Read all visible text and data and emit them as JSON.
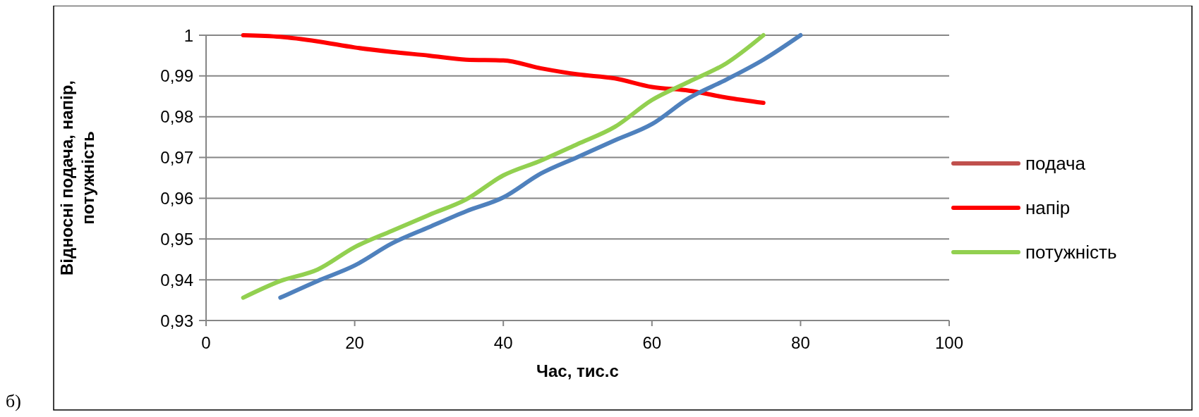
{
  "chart_data": {
    "type": "line",
    "xlabel": "Час, тис.с",
    "ylabel": "Відносні подача, напір, потужність",
    "annotations": [
      "б)"
    ],
    "xlim": [
      0,
      100
    ],
    "xticks": [
      0,
      20,
      40,
      60,
      80,
      100
    ],
    "ylim": [
      0.93,
      1
    ],
    "yticks": [
      {
        "value": 0.93,
        "label": "0,93"
      },
      {
        "value": 0.94,
        "label": "0,94"
      },
      {
        "value": 0.95,
        "label": "0,95"
      },
      {
        "value": 0.96,
        "label": "0,96"
      },
      {
        "value": 0.97,
        "label": "0,97"
      },
      {
        "value": 0.98,
        "label": "0,98"
      },
      {
        "value": 0.99,
        "label": "0,99"
      },
      1
    ],
    "grid": "y",
    "legend": "right",
    "marker": "none",
    "line_style": "solid",
    "series": [
      {
        "name": "подача",
        "color": "#c0504d"
      },
      {
        "name": "напір",
        "color": "#ff0000",
        "x": [
          5,
          10,
          15,
          20,
          25,
          30,
          35,
          40,
          45,
          50,
          55,
          60,
          65,
          70,
          75
        ],
        "values": [
          1.0,
          0.9996,
          0.9985,
          0.997,
          0.9959,
          0.995,
          0.994,
          0.9938,
          0.9919,
          0.9904,
          0.9894,
          0.9873,
          0.9864,
          0.9847,
          0.9834
        ]
      },
      {
        "name": "потужність",
        "color": "#92d050",
        "x": [
          5,
          10,
          15,
          20,
          25,
          30,
          35,
          40,
          45,
          50,
          55,
          60,
          65,
          70,
          75
        ],
        "values": [
          0.9356,
          0.9397,
          0.9425,
          0.948,
          0.952,
          0.9559,
          0.9597,
          0.9656,
          0.9692,
          0.9733,
          0.9775,
          0.9841,
          0.9886,
          0.9931,
          1.0
        ]
      },
      {
        "color": "#4f81bd",
        "x": [
          10,
          15,
          20,
          25,
          30,
          35,
          40,
          45,
          50,
          55,
          60,
          65,
          70,
          75,
          80
        ],
        "values": [
          0.9356,
          0.9397,
          0.9435,
          0.9489,
          0.9529,
          0.9568,
          0.9602,
          0.966,
          0.9701,
          0.9742,
          0.9782,
          0.9846,
          0.9891,
          0.994,
          1.0
        ]
      }
    ]
  }
}
